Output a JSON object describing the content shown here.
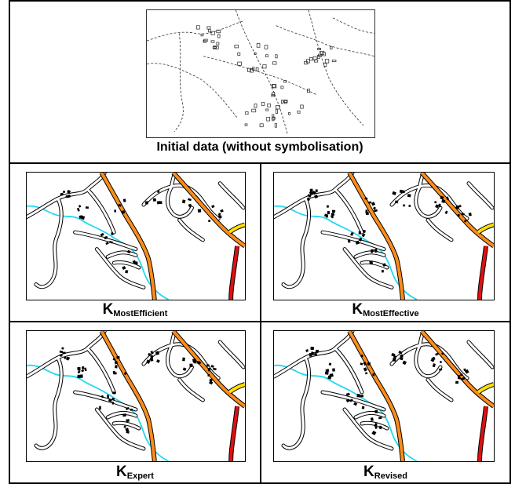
{
  "top_panel": {
    "caption": "Initial data (without symbolisation)"
  },
  "panels": [
    {
      "letter": "K",
      "subscript": "MostEfficient"
    },
    {
      "letter": "K",
      "subscript": "MostEffective"
    },
    {
      "letter": "K",
      "subscript": "Expert"
    },
    {
      "letter": "K",
      "subscript": "Revised"
    }
  ],
  "colors": {
    "main_road": "#ff8c1a",
    "highway": "#e01010",
    "secondary": "#ffe000",
    "river": "#22d8f0",
    "minor_road_casing": "#000000",
    "minor_road_fill": "#ffffff",
    "building": "#000000"
  }
}
